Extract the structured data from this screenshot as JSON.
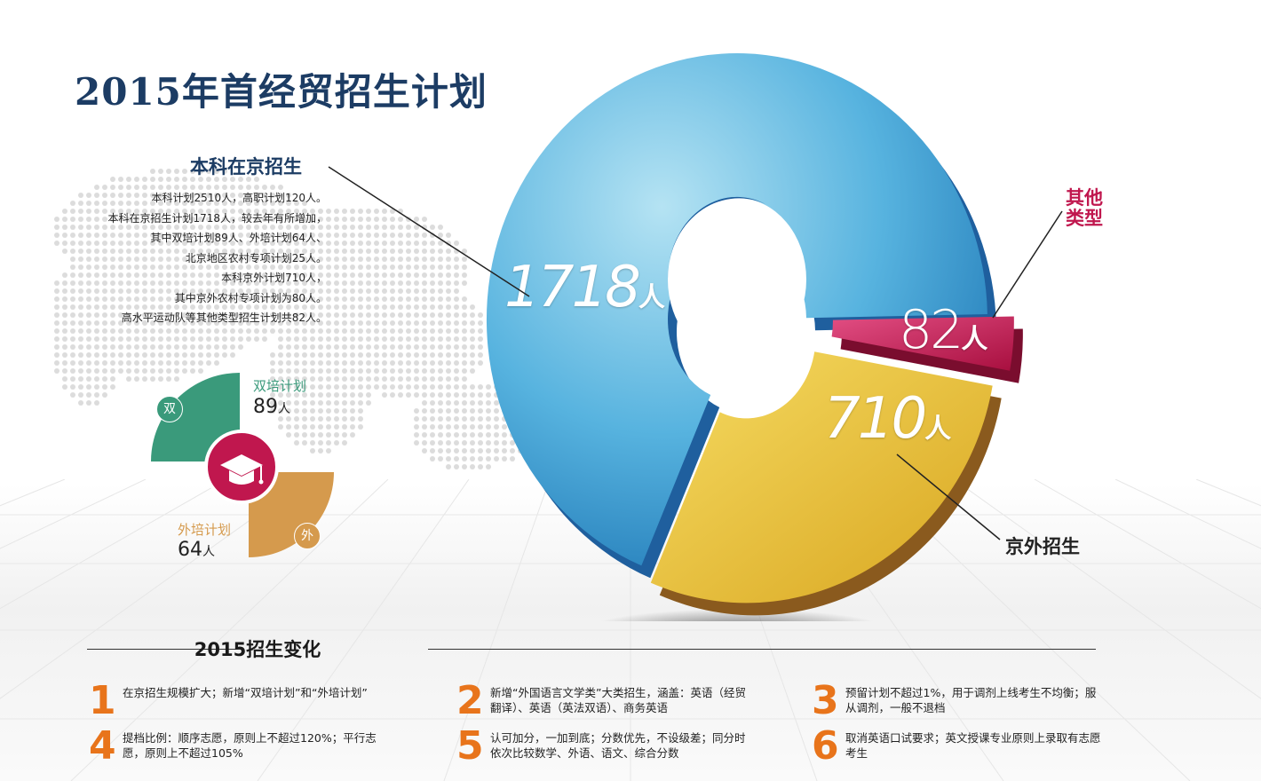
{
  "title": "2015年首经贸招生计划",
  "colors": {
    "title": "#1c3c64",
    "beijing_slice": "#5bb6e0",
    "outside_slice": "#e8c03a",
    "other_slice": "#c3164c",
    "shuang": "#3a9a7b",
    "wai": "#d59a4d",
    "center_badge": "#c0174e",
    "number_accent": "#e8741b"
  },
  "beijing": {
    "heading": "本科在京招生",
    "lines": [
      "本科计划2510人，高职计划120人。",
      "本科在京招生计划1718人，较去年有所增加，",
      "其中双培计划89人、外培计划64人、",
      "北京地区农村专项计划25人。",
      "本科京外计划710人，",
      "其中京外农村专项计划为80人。",
      "高水平运动队等其他类型招生计划共82人。"
    ]
  },
  "mini": {
    "shuang_title": "双培计划",
    "shuang_value": "89",
    "shuang_badge": "双",
    "wai_title": "外培计划",
    "wai_value": "64",
    "wai_badge": "外",
    "unit": "人",
    "center_icon": "graduation-cap-icon"
  },
  "labels": {
    "other_line1": "其他",
    "other_line2": "类型",
    "jingwai": "京外招生"
  },
  "chart_data": [
    {
      "type": "pie",
      "title": "",
      "unit": "人",
      "slices": [
        {
          "label": "本科在京招生",
          "value": 1718,
          "display": "1718",
          "color": "#5bb6e0"
        },
        {
          "label": "京外招生",
          "value": 710,
          "display": "710",
          "color": "#e8c03a"
        },
        {
          "label": "其他类型",
          "value": 82,
          "display": "82",
          "color": "#c3164c"
        }
      ]
    },
    {
      "type": "pie",
      "title": "",
      "unit": "人",
      "slices": [
        {
          "label": "双培计划",
          "value": 89,
          "color": "#3a9a7b"
        },
        {
          "label": "外培计划",
          "value": 64,
          "color": "#d59a4d"
        }
      ]
    }
  ],
  "changes": {
    "title": "2015招生变化",
    "items": [
      {
        "num": "1",
        "text": "在京招生规模扩大；新增“双培计划”和“外培计划”"
      },
      {
        "num": "2",
        "text": "新增“外国语言文学类”大类招生，涵盖：英语（经贸翻译）、英语（英法双语）、商务英语"
      },
      {
        "num": "3",
        "text": "预留计划不超过1%，用于调剂上线考生不均衡；服从调剂，一般不退档"
      },
      {
        "num": "4",
        "text": "提档比例：顺序志愿，原则上不超过120%；平行志愿，原则上不超过105%"
      },
      {
        "num": "5",
        "text": "认可加分，一加到底；分数优先，不设级差；同分时依次比较数学、外语、语文、综合分数"
      },
      {
        "num": "6",
        "text": "取消英语口试要求；英文授课专业原则上录取有志愿考生"
      }
    ]
  }
}
